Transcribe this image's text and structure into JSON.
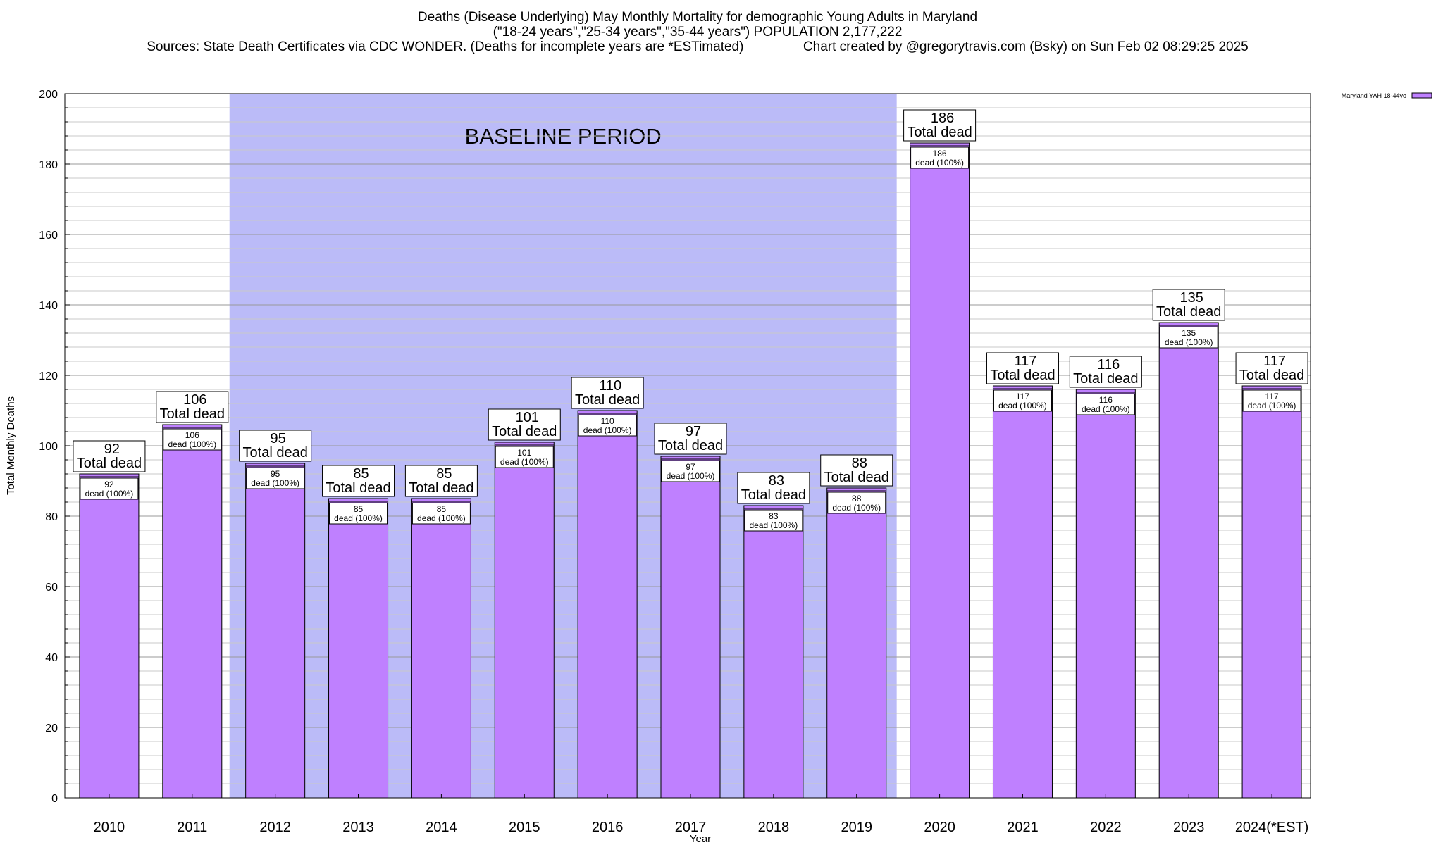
{
  "chart_data": {
    "type": "bar",
    "title": "Deaths (Disease Underlying) May Monthly Mortality for demographic Young Adults in Maryland",
    "subtitle": "(\"18-24 years\",\"25-34 years\",\"35-44 years\") POPULATION 2,177,222",
    "sources": "Sources: State Death Certificates via CDC WONDER. (Deaths for incomplete years are *ESTimated)",
    "credit": "Chart created by @gregorytravis.com (Bsky) on Sun Feb 02 08:29:25 2025",
    "xlabel": "Year",
    "ylabel": "Total Monthly Deaths",
    "ylim": [
      0,
      200
    ],
    "yticks": [
      "0",
      "20",
      "40",
      "60",
      "80",
      "100",
      "120",
      "140",
      "160",
      "180",
      "200"
    ],
    "categories": [
      "2010",
      "2011",
      "2012",
      "2013",
      "2014",
      "2015",
      "2016",
      "2017",
      "2018",
      "2019",
      "2020",
      "2021",
      "2022",
      "2023",
      "2024(*EST)"
    ],
    "series": [
      {
        "name": "Maryland YAH 18-44yo",
        "values": [
          92,
          106,
          95,
          85,
          85,
          101,
          110,
          97,
          83,
          88,
          186,
          117,
          116,
          135,
          117
        ]
      }
    ],
    "total_labels": [
      "92",
      "106",
      "95",
      "85",
      "85",
      "101",
      "110",
      "97",
      "83",
      "88",
      "186",
      "117",
      "116",
      "135",
      "117"
    ],
    "total_suffix": "Total dead",
    "inner_labels": [
      "92",
      "106",
      "95",
      "85",
      "85",
      "101",
      "110",
      "97",
      "83",
      "88",
      "186",
      "117",
      "116",
      "135",
      "117"
    ],
    "inner_suffix": "dead (100%)",
    "baseline": {
      "label": "BASELINE PERIOD",
      "from": "2012",
      "to": "2019"
    },
    "legend_position": "top-right",
    "grid": "horizontal",
    "colors": {
      "bar": "#bf80ff",
      "baseline_shade": "#bbbbf8",
      "legend_swatch": "#bf80ff"
    }
  }
}
